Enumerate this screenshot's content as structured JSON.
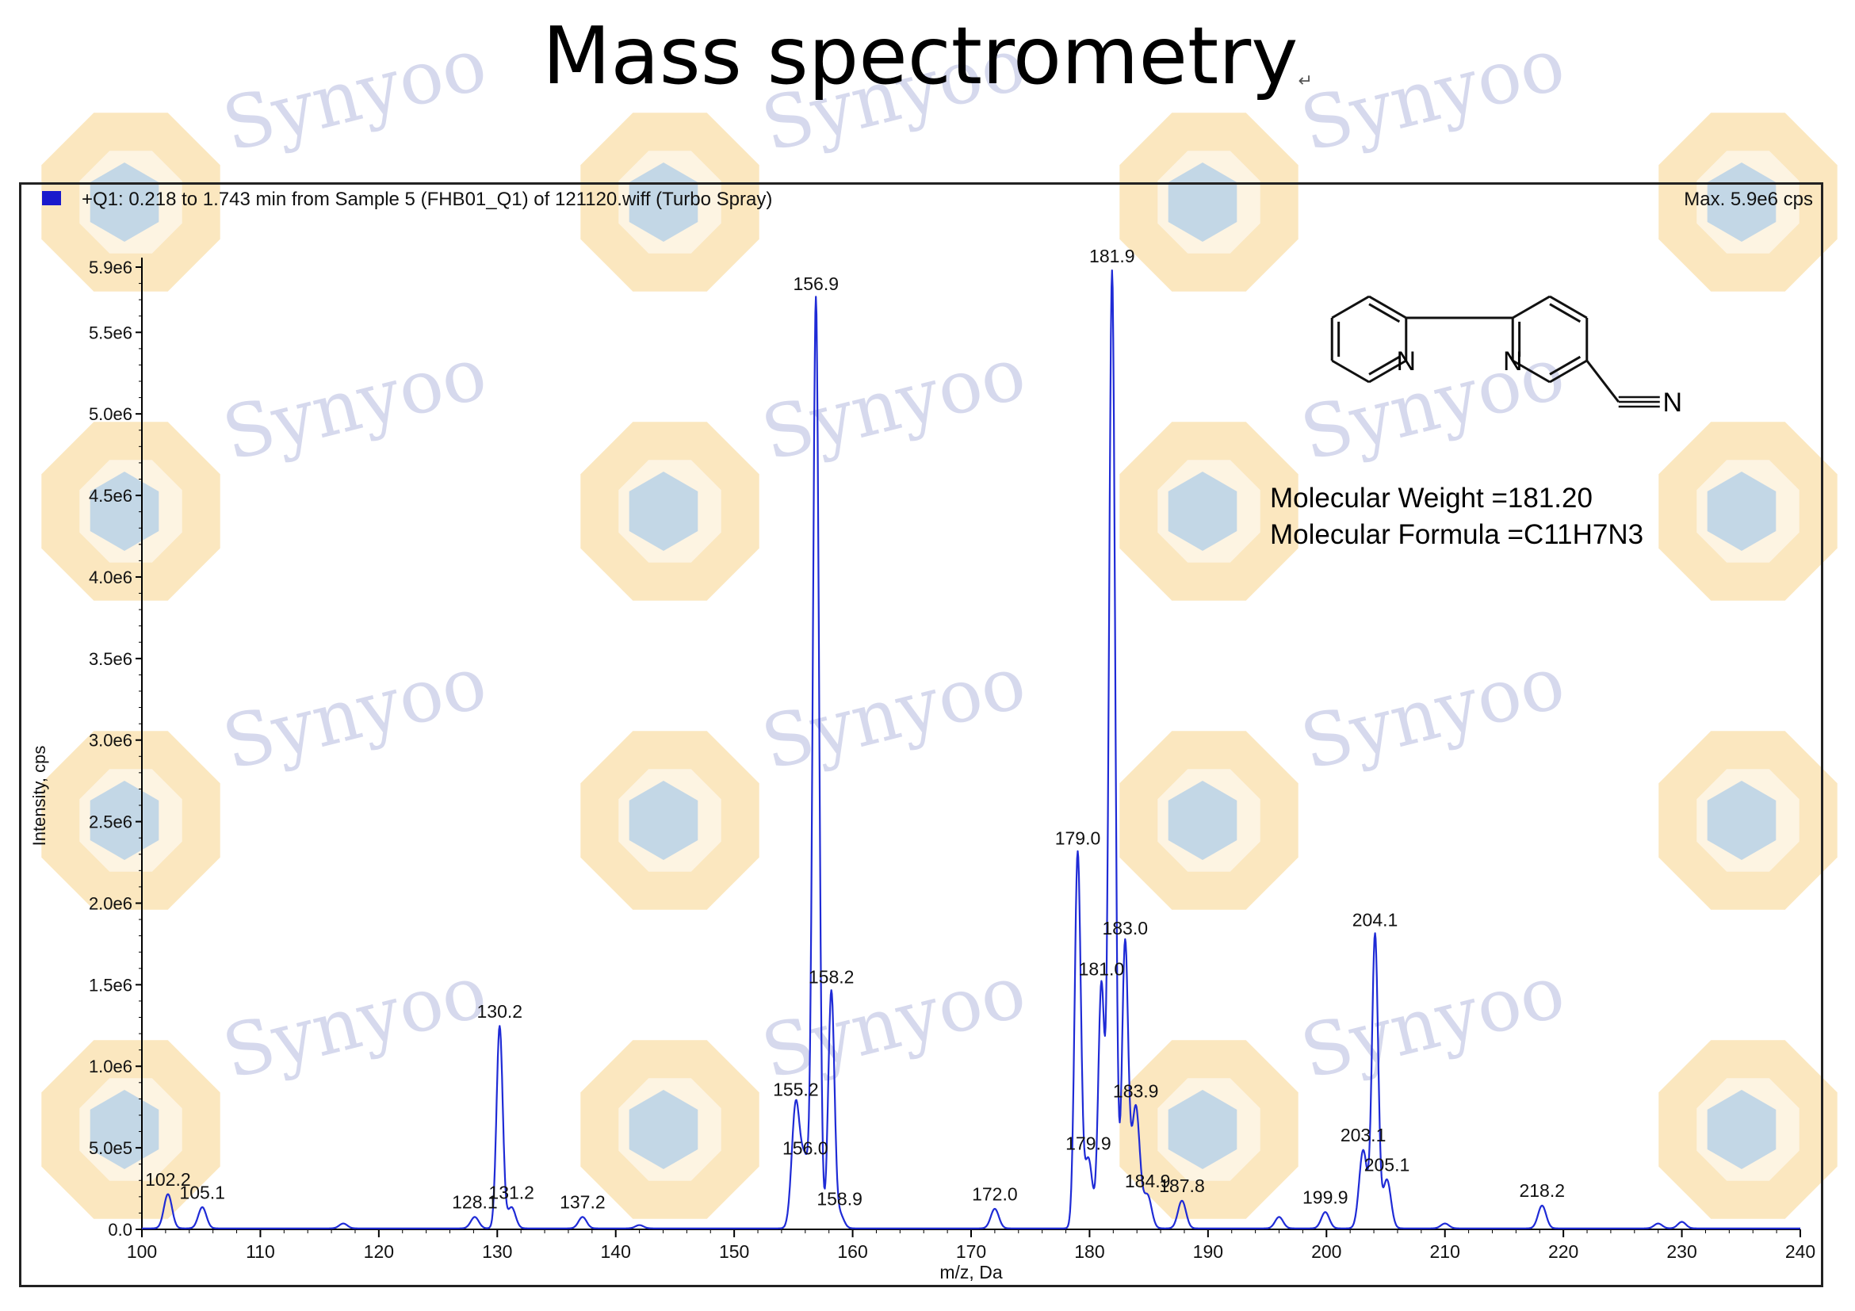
{
  "slide": {
    "title": "Mass spectrometry",
    "watermark": "Synyoo"
  },
  "chart_header": {
    "description": "+Q1: 0.218 to 1.743 min from Sample 5 (FHB01_Q1) of 121120.wiff (Turbo Spray)",
    "max": "Max. 5.9e6 cps"
  },
  "molecule": {
    "weight_text": "Molecular Weight =181.20",
    "formula_text": "Molecular Formula =C11H7N3",
    "atom_label_n": "N"
  },
  "colors": {
    "trace": "#1f2bd6",
    "axis": "#000000",
    "watermark_text": "#c9cde8",
    "watermark_orange": "#f8d38a",
    "watermark_blue": "#a9cbe8"
  },
  "chart_data": {
    "type": "line",
    "title": "",
    "xlabel": "m/z, Da",
    "ylabel": "Intensity, cps",
    "xlim": [
      100,
      240
    ],
    "ylim": [
      0,
      5900000
    ],
    "x_ticks": [
      100,
      110,
      120,
      130,
      140,
      150,
      160,
      170,
      180,
      190,
      200,
      210,
      220,
      230,
      240
    ],
    "y_ticks": [
      {
        "value": 0,
        "label": "0.0"
      },
      {
        "value": 500000,
        "label": "5.0e5"
      },
      {
        "value": 1000000,
        "label": "1.0e6"
      },
      {
        "value": 1500000,
        "label": "1.5e6"
      },
      {
        "value": 2000000,
        "label": "2.0e6"
      },
      {
        "value": 2500000,
        "label": "2.5e6"
      },
      {
        "value": 3000000,
        "label": "3.0e6"
      },
      {
        "value": 3500000,
        "label": "3.5e6"
      },
      {
        "value": 4000000,
        "label": "4.0e6"
      },
      {
        "value": 4500000,
        "label": "4.5e6"
      },
      {
        "value": 5000000,
        "label": "5.0e6"
      },
      {
        "value": 5500000,
        "label": "5.5e6"
      },
      {
        "value": 5900000,
        "label": "5.9e6"
      }
    ],
    "grid": false,
    "peaks": [
      {
        "mz": 102.2,
        "intensity": 210000,
        "label": "102.2"
      },
      {
        "mz": 105.1,
        "intensity": 130000,
        "label": "105.1"
      },
      {
        "mz": 117.0,
        "intensity": 30000,
        "label": ""
      },
      {
        "mz": 128.1,
        "intensity": 70000,
        "label": "128.1"
      },
      {
        "mz": 130.2,
        "intensity": 1240000,
        "label": "130.2"
      },
      {
        "mz": 131.2,
        "intensity": 130000,
        "label": "131.2"
      },
      {
        "mz": 137.2,
        "intensity": 70000,
        "label": "137.2"
      },
      {
        "mz": 142.0,
        "intensity": 20000,
        "label": ""
      },
      {
        "mz": 155.2,
        "intensity": 760000,
        "label": "155.2"
      },
      {
        "mz": 156.0,
        "intensity": 400000,
        "label": "156.0"
      },
      {
        "mz": 156.9,
        "intensity": 5700000,
        "label": "156.9"
      },
      {
        "mz": 158.2,
        "intensity": 1450000,
        "label": "158.2"
      },
      {
        "mz": 158.9,
        "intensity": 90000,
        "label": "158.9"
      },
      {
        "mz": 172.0,
        "intensity": 120000,
        "label": "172.0"
      },
      {
        "mz": 179.0,
        "intensity": 2300000,
        "label": "179.0"
      },
      {
        "mz": 179.9,
        "intensity": 430000,
        "label": "179.9"
      },
      {
        "mz": 181.0,
        "intensity": 1500000,
        "label": "181.0"
      },
      {
        "mz": 181.9,
        "intensity": 5870000,
        "label": "181.9"
      },
      {
        "mz": 183.0,
        "intensity": 1750000,
        "label": "183.0"
      },
      {
        "mz": 183.9,
        "intensity": 750000,
        "label": "183.9"
      },
      {
        "mz": 184.9,
        "intensity": 200000,
        "label": "184.9"
      },
      {
        "mz": 187.8,
        "intensity": 170000,
        "label": "187.8"
      },
      {
        "mz": 196.0,
        "intensity": 70000,
        "label": ""
      },
      {
        "mz": 199.9,
        "intensity": 100000,
        "label": "199.9"
      },
      {
        "mz": 203.1,
        "intensity": 480000,
        "label": "203.1"
      },
      {
        "mz": 204.1,
        "intensity": 1800000,
        "label": "204.1"
      },
      {
        "mz": 205.1,
        "intensity": 300000,
        "label": "205.1"
      },
      {
        "mz": 210.0,
        "intensity": 30000,
        "label": ""
      },
      {
        "mz": 218.2,
        "intensity": 140000,
        "label": "218.2"
      },
      {
        "mz": 228.0,
        "intensity": 30000,
        "label": ""
      },
      {
        "mz": 230.0,
        "intensity": 40000,
        "label": ""
      }
    ]
  }
}
